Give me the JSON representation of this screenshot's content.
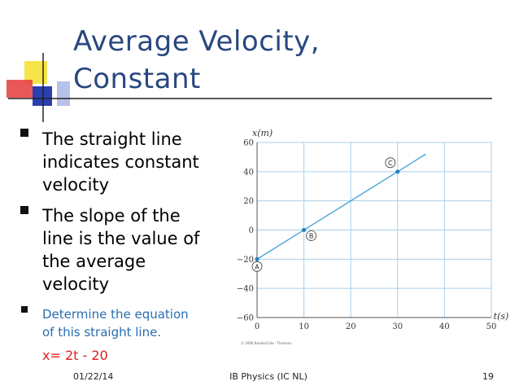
{
  "slide": {
    "title": [
      "Average Velocity,",
      "Constant"
    ],
    "bullets": [
      {
        "lines": [
          "The straight line",
          "indicates constant",
          "velocity"
        ]
      },
      {
        "lines": [
          "The slope of the",
          "line is the value of",
          "the average",
          "velocity"
        ]
      },
      {
        "lines": [
          "Determine the equation",
          "of this straight line."
        ]
      }
    ],
    "equation": "x= 2t - 20",
    "footer": {
      "date": "01/22/14",
      "course": "IB Physics (IC NL)",
      "page": "19"
    }
  },
  "chart_data": {
    "type": "line",
    "xlabel": "t(s)",
    "ylabel": "x(m)",
    "credit": "© 2006 Brooks/Cole - Thomson",
    "x": [
      0,
      36
    ],
    "values": [
      -20,
      52
    ],
    "color": "#3b9fd8",
    "points": [
      {
        "label": "A",
        "x": 0,
        "y": -20
      },
      {
        "label": "B",
        "x": 10,
        "y": 0
      },
      {
        "label": "C",
        "x": 30,
        "y": 40
      }
    ],
    "xlim": [
      0,
      50
    ],
    "ylim": [
      -60,
      60
    ],
    "xticks": [
      0,
      10,
      20,
      30,
      40,
      50
    ],
    "yticks": [
      {
        "value": -60,
        "label": "−60"
      },
      {
        "value": -40,
        "label": "−40"
      },
      {
        "value": -20,
        "label": "−20"
      },
      0,
      20,
      40,
      60
    ],
    "grid": true
  }
}
